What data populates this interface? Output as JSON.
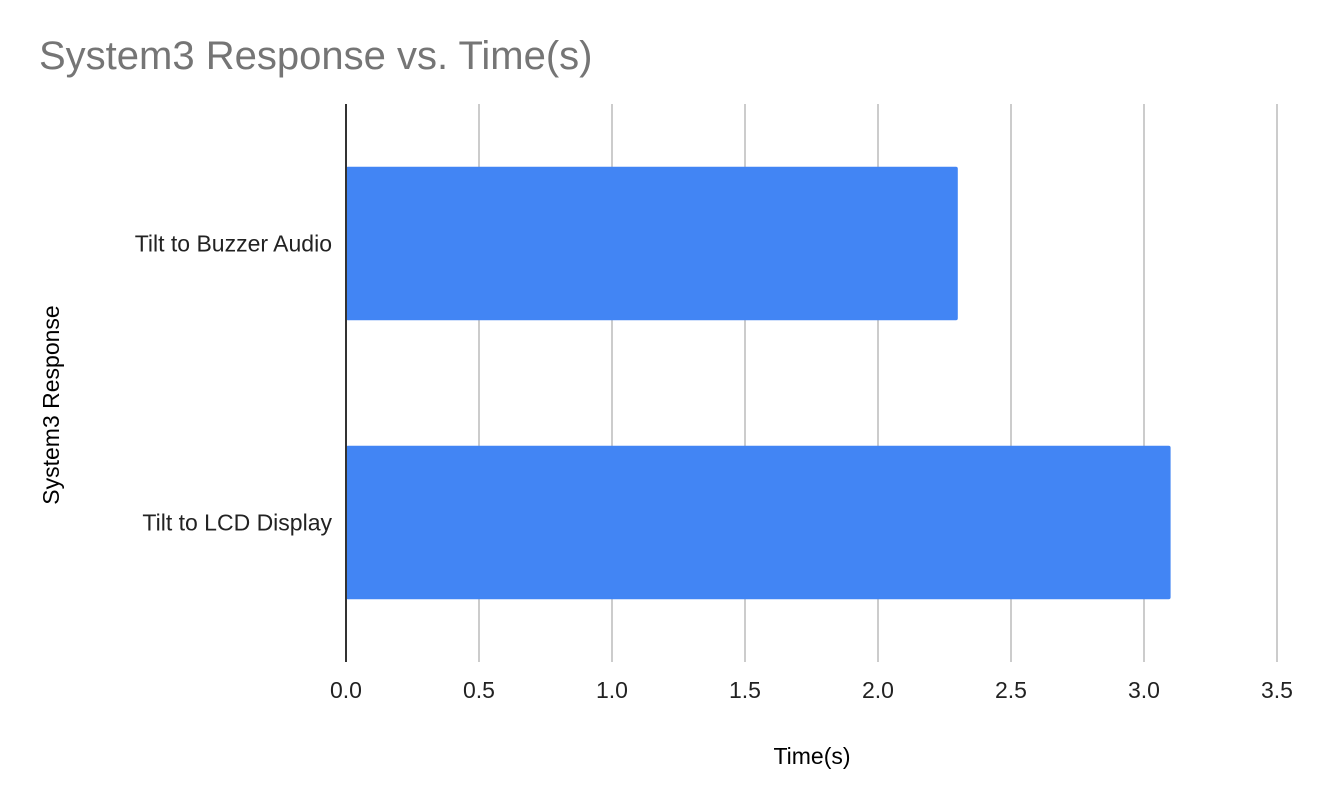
{
  "chart_data": {
    "type": "bar",
    "orientation": "horizontal",
    "title": "System3 Response vs. Time(s)",
    "xlabel": "Time(s)",
    "ylabel": "System3 Response",
    "categories": [
      "Tilt to Buzzer Audio",
      "Tilt to LCD Display"
    ],
    "values": [
      2.3,
      3.1
    ],
    "xlim": [
      0,
      3.5
    ],
    "xticks": [
      "0.0",
      "0.5",
      "1.0",
      "1.5",
      "2.0",
      "2.5",
      "3.0",
      "3.5"
    ],
    "grid": true,
    "legend": "none",
    "bar_color": "#4285f4",
    "title_color": "#757575"
  }
}
